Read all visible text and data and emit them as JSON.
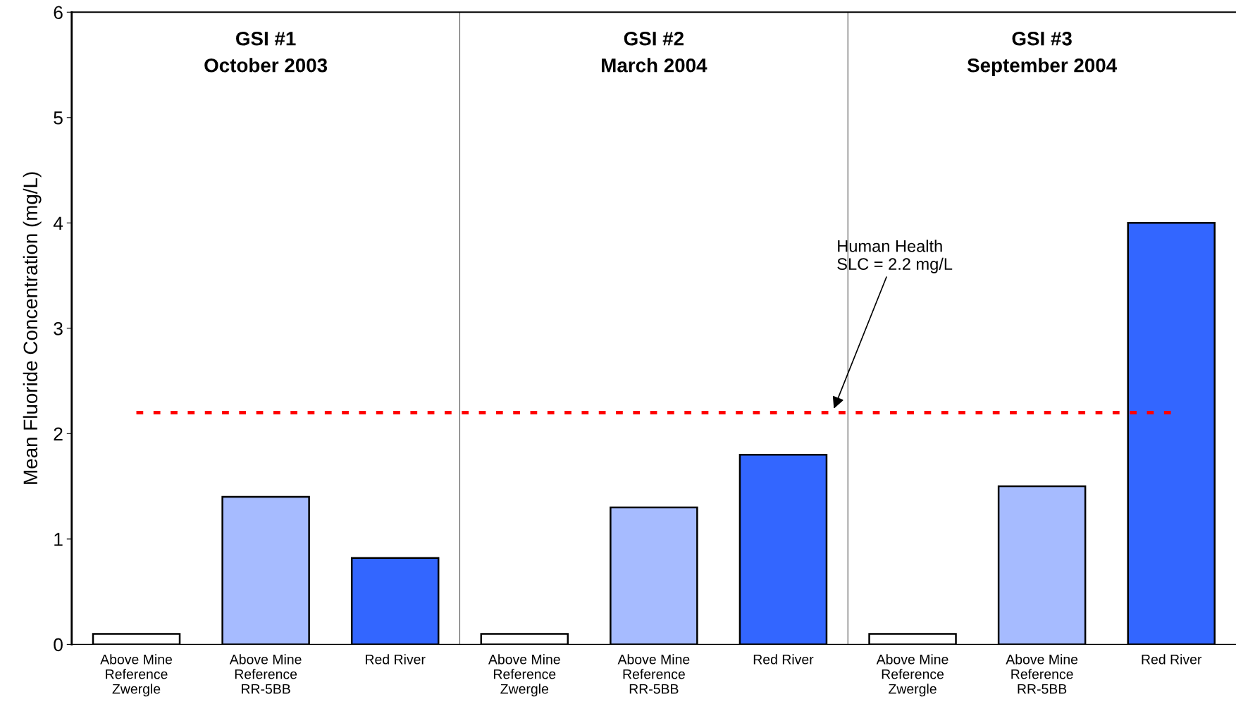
{
  "chart_data": {
    "type": "bar",
    "ylabel": "Mean Fluoride Concentration (mg/L)",
    "categories": [
      "Above Mine\nReference\nZwergle",
      "Above Mine\nReference\nRR-5BB",
      "Red River",
      "Above Mine\nReference\nZwergle",
      "Above Mine\nReference\nRR-5BB",
      "Red River",
      "Above Mine\nReference\nZwergle",
      "Above Mine\nReference\nRR-5BB",
      "Red River"
    ],
    "values": [
      0.1,
      1.4,
      0.82,
      0.1,
      1.3,
      1.8,
      0.1,
      1.5,
      4.0
    ],
    "colors": [
      "#ffffff",
      "#a6bbff",
      "#3366ff",
      "#ffffff",
      "#a6bbff",
      "#3366ff",
      "#ffffff",
      "#a6bbff",
      "#3366ff"
    ],
    "ylim": [
      0,
      6
    ],
    "yticks": [
      0,
      1,
      2,
      3,
      4,
      5,
      6
    ],
    "ref_lines": [
      {
        "axis": "y",
        "value": 2.2,
        "color": "#ff0000",
        "line_style": "dotted"
      }
    ],
    "annotations": [
      "GSI #1\nOctober 2003",
      "GSI #2\nMarch 2004",
      "GSI #3\nSeptember 2004",
      "Human Health\nSLC = 2.2 mg/L"
    ]
  }
}
